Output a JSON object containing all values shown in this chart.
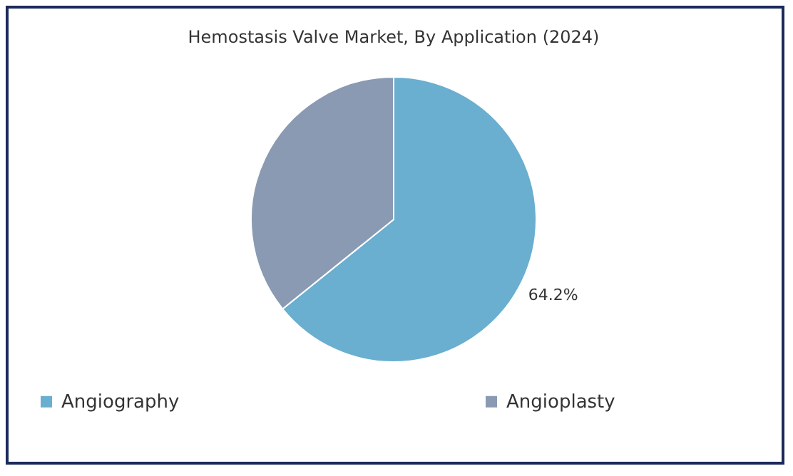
{
  "chart_data": {
    "type": "pie",
    "title": "Hemostasis Valve Market, By Application (2024)",
    "categories": [
      "Angiography",
      "Angioplasty"
    ],
    "values": [
      64.2,
      35.8
    ],
    "colors": [
      "#6aaed0",
      "#8a9ab2"
    ],
    "value_labels": [
      "64.2%",
      null
    ],
    "legend": "bottom"
  }
}
